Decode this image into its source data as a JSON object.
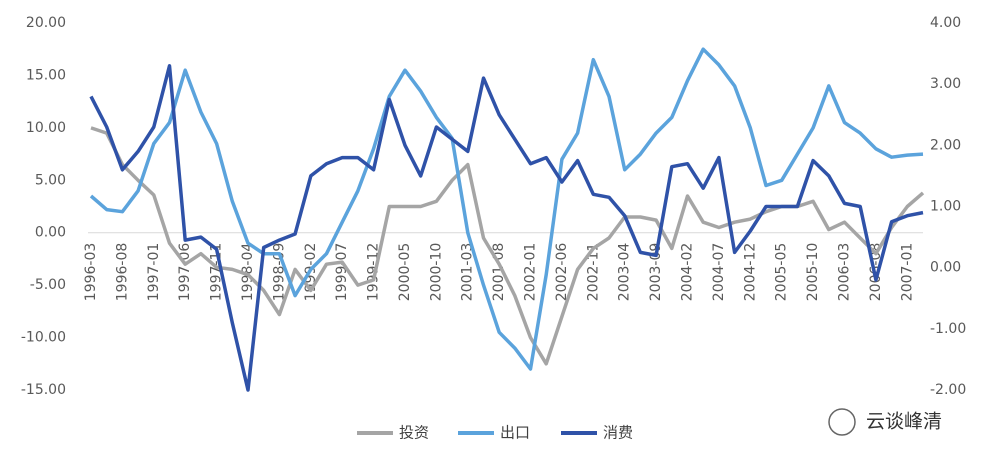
{
  "chart_data": {
    "type": "line",
    "categories": [
      "1996-03",
      null,
      "1996-08",
      null,
      "1997-01",
      null,
      "1997-06",
      null,
      "1997-11",
      null,
      "1998-04",
      null,
      "1998-09",
      null,
      "1999-02",
      null,
      "1999-07",
      null,
      "1999-12",
      null,
      "2000-05",
      null,
      "2000-10",
      null,
      "2001-03",
      null,
      "2001-08",
      null,
      "2002-01",
      null,
      "2002-06",
      null,
      "2002-11",
      null,
      "2003-04",
      null,
      "2003-09",
      null,
      "2004-02",
      null,
      "2004-07",
      null,
      "2004-12",
      null,
      "2005-05",
      null,
      "2005-10",
      null,
      "2006-03",
      null,
      "2006-08",
      null,
      "2007-01",
      null
    ],
    "series": [
      {
        "name": "投资",
        "color": "#a5a5a5",
        "values": [
          10.0,
          9.5,
          6.5,
          5.0,
          3.6,
          -1.0,
          -3.0,
          -2.0,
          -3.3,
          -3.5,
          -4.0,
          -5.5,
          -7.8,
          -3.5,
          -5.5,
          -3.0,
          -2.8,
          -5.0,
          -4.5,
          2.5,
          2.5,
          2.5,
          3.0,
          5.0,
          6.5,
          -0.5,
          -3.0,
          -6.0,
          -10.0,
          -12.5,
          -8.0,
          -3.5,
          -1.5,
          -0.5,
          1.5,
          1.5,
          1.2,
          -1.5,
          3.5,
          1.0,
          0.5,
          1.0,
          1.3,
          2.0,
          2.5,
          2.5,
          3.0,
          0.3,
          1.0,
          -0.5,
          -2.0,
          0.5,
          2.5,
          3.8
        ]
      },
      {
        "name": "出口",
        "color": "#5ba3dc",
        "values": [
          3.5,
          2.2,
          2.0,
          4.0,
          8.5,
          10.5,
          15.5,
          11.5,
          8.5,
          3.0,
          -1.0,
          -2.0,
          -2.0,
          -6.0,
          -3.5,
          -2.0,
          1.0,
          4.0,
          8.0,
          13.0,
          15.5,
          13.5,
          11.0,
          9.0,
          0.0,
          -5.0,
          -9.5,
          -11.0,
          -13.0,
          -4.0,
          7.0,
          9.5,
          16.5,
          13.0,
          6.0,
          7.5,
          9.5,
          11.0,
          14.5,
          17.5,
          16.0,
          14.0,
          10.0,
          4.5,
          5.0,
          7.5,
          10.0,
          14.0,
          10.5,
          9.5,
          8.0,
          7.2,
          7.4,
          7.5
        ]
      },
      {
        "name": "消费",
        "color": "#2f52a8",
        "axis": "y2",
        "values": [
          2.8,
          2.3,
          1.6,
          1.9,
          2.3,
          3.3,
          0.45,
          0.5,
          0.3,
          -0.9,
          -2.0,
          0.33,
          0.45,
          0.55,
          1.5,
          1.7,
          1.8,
          1.8,
          1.6,
          2.75,
          2.0,
          1.5,
          2.3,
          2.1,
          1.9,
          3.1,
          2.5,
          2.1,
          1.7,
          1.8,
          1.4,
          1.75,
          1.2,
          1.15,
          0.85,
          0.25,
          0.2,
          1.65,
          1.7,
          1.3,
          1.8,
          0.25,
          0.6,
          1.0,
          1.0,
          1.0,
          1.75,
          1.5,
          1.05,
          1.0,
          -0.2,
          0.75,
          0.85,
          0.9
        ]
      }
    ],
    "ylim": [
      -15,
      20
    ],
    "yticks": [
      {
        "value": -15,
        "label": "-15.00"
      },
      {
        "value": -10,
        "label": "-10.00"
      },
      {
        "value": -5,
        "label": "-5.00"
      },
      {
        "value": 0,
        "label": "0.00"
      },
      {
        "value": 5,
        "label": "5.00"
      },
      {
        "value": 10,
        "label": "10.00"
      },
      {
        "value": 15,
        "label": "15.00"
      },
      {
        "value": 20,
        "label": "20.00"
      }
    ],
    "y2lim": [
      -2,
      4
    ],
    "y2ticks": [
      {
        "value": -2,
        "label": "-2.00"
      },
      {
        "value": -1,
        "label": "-1.00"
      },
      {
        "value": 0,
        "label": "0.00"
      },
      {
        "value": 1,
        "label": "1.00"
      },
      {
        "value": 2,
        "label": "2.00"
      },
      {
        "value": 3,
        "label": "3.00"
      },
      {
        "value": 4,
        "label": "4.00"
      }
    ],
    "grid": false,
    "legend": "bottom"
  },
  "watermark": "云谈峰清"
}
